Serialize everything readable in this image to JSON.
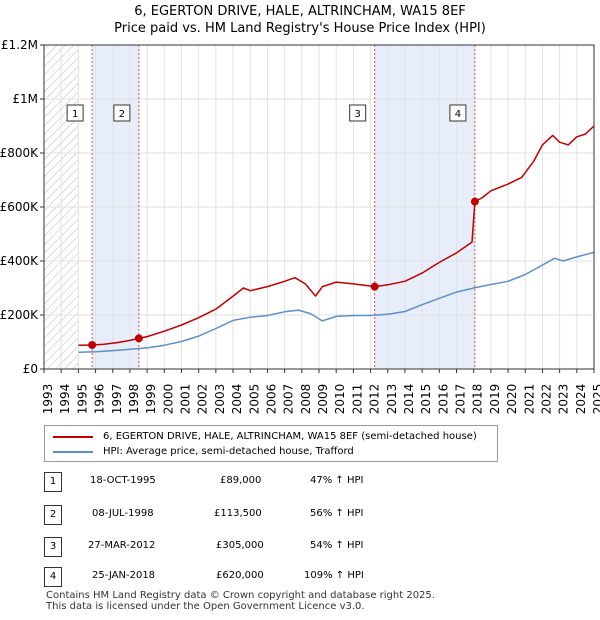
{
  "chart_data": {
    "type": "line",
    "title": "6, EGERTON DRIVE, HALE, ALTRINCHAM, WA15 8EF",
    "subtitle": "Price paid vs. HM Land Registry's House Price Index (HPI)",
    "xlabel": "",
    "ylabel": "",
    "xlim": [
      1993,
      2025
    ],
    "ylim": [
      0,
      1200000
    ],
    "y_ticks": [
      0,
      200000,
      400000,
      600000,
      800000,
      1000000,
      1200000
    ],
    "y_tick_labels": [
      "£0",
      "£200K",
      "£400K",
      "£600K",
      "£800K",
      "£1M",
      "£1.2M"
    ],
    "x_ticks": [
      1993,
      1994,
      1995,
      1996,
      1997,
      1998,
      1999,
      2000,
      2001,
      2002,
      2003,
      2004,
      2005,
      2006,
      2007,
      2008,
      2009,
      2010,
      2011,
      2012,
      2013,
      2014,
      2015,
      2016,
      2017,
      2018,
      2019,
      2020,
      2021,
      2022,
      2023,
      2024,
      2025
    ],
    "x_tick_labels": [
      "1993",
      "1994",
      "1995",
      "1996",
      "1997",
      "1998",
      "1999",
      "2000",
      "2001",
      "2002",
      "2003",
      "2004",
      "2005",
      "2006",
      "2007",
      "2008",
      "2009",
      "2010",
      "2011",
      "2012",
      "2013",
      "2014",
      "2015",
      "2016",
      "2017",
      "2018",
      "2019",
      "2020",
      "2021",
      "2022",
      "2023",
      "2024",
      "2025"
    ],
    "grid": true,
    "hatched_region": [
      1993,
      1995
    ],
    "shaded_regions": [
      [
        1995.8,
        1998.52
      ],
      [
        2012.24,
        2018.07
      ]
    ],
    "series": [
      {
        "name": "6, EGERTON DRIVE, HALE, ALTRINCHAM, WA15 8EF (semi-detached house)",
        "color": "#c00000",
        "x": [
          1995.0,
          1995.8,
          1996.5,
          1997.3,
          1998.0,
          1998.52,
          1999.0,
          2000.0,
          2001.0,
          2002.0,
          2003.0,
          2004.0,
          2004.6,
          2005.0,
          2006.0,
          2007.0,
          2007.6,
          2008.2,
          2008.8,
          2009.2,
          2010.0,
          2011.0,
          2012.24,
          2013.0,
          2014.0,
          2015.0,
          2016.0,
          2017.0,
          2017.9,
          2018.07,
          2018.5,
          2019.0,
          2020.0,
          2020.8,
          2021.5,
          2022.0,
          2022.6,
          2023.0,
          2023.5,
          2024.0,
          2024.5,
          2025.0
        ],
        "y": [
          88000,
          89000,
          92000,
          98000,
          106000,
          113500,
          120000,
          140000,
          163000,
          190000,
          222000,
          270000,
          300000,
          290000,
          305000,
          325000,
          338000,
          315000,
          270000,
          305000,
          322000,
          315000,
          305000,
          312000,
          325000,
          355000,
          395000,
          430000,
          470000,
          620000,
          635000,
          660000,
          685000,
          710000,
          770000,
          830000,
          865000,
          840000,
          830000,
          860000,
          870000,
          900000
        ]
      },
      {
        "name": "HPI: Average price, semi-detached house, Trafford",
        "color": "#5b8fcf",
        "x": [
          1995.0,
          1996.0,
          1997.0,
          1998.0,
          1999.0,
          2000.0,
          2001.0,
          2002.0,
          2003.0,
          2004.0,
          2005.0,
          2006.0,
          2007.0,
          2007.8,
          2008.5,
          2009.2,
          2010.0,
          2011.0,
          2012.0,
          2013.0,
          2014.0,
          2015.0,
          2016.0,
          2017.0,
          2018.0,
          2019.0,
          2020.0,
          2021.0,
          2022.0,
          2022.7,
          2023.2,
          2024.0,
          2025.0
        ],
        "y": [
          62000,
          64000,
          68000,
          73000,
          78000,
          88000,
          102000,
          122000,
          150000,
          180000,
          192000,
          198000,
          212000,
          218000,
          205000,
          178000,
          195000,
          198000,
          198000,
          203000,
          213000,
          238000,
          262000,
          285000,
          300000,
          313000,
          325000,
          350000,
          385000,
          410000,
          400000,
          415000,
          432000
        ]
      }
    ],
    "markers": [
      {
        "label": "1",
        "x": 1995.8,
        "y": 89000
      },
      {
        "label": "2",
        "x": 1998.52,
        "y": 113500
      },
      {
        "label": "3",
        "x": 2012.24,
        "y": 305000
      },
      {
        "label": "4",
        "x": 2018.07,
        "y": 620000
      }
    ]
  },
  "legend": {
    "property_label": "6, EGERTON DRIVE, HALE, ALTRINCHAM, WA15 8EF (semi-detached house)",
    "hpi_label": "HPI: Average price, semi-detached house, Trafford",
    "property_color": "#c00000",
    "hpi_color": "#5b8fcf"
  },
  "transactions": [
    {
      "num": "1",
      "date": "18-OCT-1995",
      "price": "£89,000",
      "hpi": "47% ↑ HPI"
    },
    {
      "num": "2",
      "date": "08-JUL-1998",
      "price": "£113,500",
      "hpi": "56% ↑ HPI"
    },
    {
      "num": "3",
      "date": "27-MAR-2012",
      "price": "£305,000",
      "hpi": "54% ↑ HPI"
    },
    {
      "num": "4",
      "date": "25-JAN-2018",
      "price": "£620,000",
      "hpi": "109% ↑ HPI"
    }
  ],
  "footer": {
    "line1": "Contains HM Land Registry data © Crown copyright and database right 2025.",
    "line2": "This data is licensed under the Open Government Licence v3.0."
  }
}
